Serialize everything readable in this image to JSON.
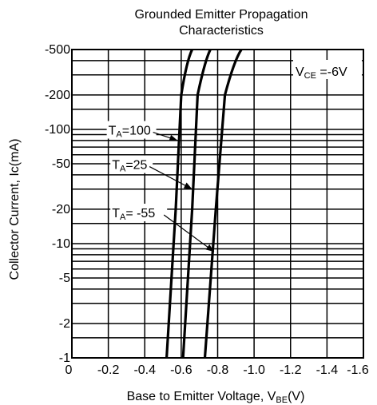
{
  "chart_data": {
    "type": "line",
    "title_line1": "Grounded Emitter Propagation",
    "title_line2": "Characteristics",
    "xlabel": "Base to Emitter Voltage, V",
    "xlabel_sub": "BE",
    "xlabel_tail": "(V)",
    "ylabel": "Collector Current,  Ic(mA)",
    "x_scale": "linear",
    "y_scale": "log",
    "xlim": [
      0,
      -1.6
    ],
    "ylim": [
      -1,
      -500
    ],
    "grid": true,
    "x_ticks": [
      {
        "value": 0,
        "label": "0"
      },
      {
        "value": -0.2,
        "label": "-0.2"
      },
      {
        "value": -0.4,
        "label": "-0.4"
      },
      {
        "value": -0.6,
        "label": "-0.6"
      },
      {
        "value": -0.8,
        "label": "-0.8"
      },
      {
        "value": -1.0,
        "label": "-1.0"
      },
      {
        "value": -1.2,
        "label": "-1.2"
      },
      {
        "value": -1.4,
        "label": "-1.4"
      },
      {
        "value": -1.6,
        "label": "-1.6"
      }
    ],
    "y_ticks": [
      {
        "value": -1,
        "label": "-1"
      },
      {
        "value": -2,
        "label": "-2"
      },
      {
        "value": -5,
        "label": "-5"
      },
      {
        "value": -10,
        "label": "-10"
      },
      {
        "value": -20,
        "label": "-20"
      },
      {
        "value": -50,
        "label": "-50"
      },
      {
        "value": -100,
        "label": "-100"
      },
      {
        "value": -200,
        "label": "-200"
      },
      {
        "value": -500,
        "label": "-500"
      }
    ],
    "y_gridlines": [
      -1.5,
      -2,
      -3,
      -4,
      -5,
      -6,
      -7,
      -8,
      -9,
      -10,
      -15,
      -20,
      -30,
      -40,
      -50,
      -60,
      -70,
      -80,
      -90,
      -100,
      -150,
      -200,
      -300,
      -400
    ],
    "condition": {
      "main": "V",
      "sub": "CE",
      "tail": " =-6V"
    },
    "series": [
      {
        "name": "TA=100",
        "label_main": "T",
        "label_sub": "A",
        "label_tail": "=100",
        "points": [
          [
            -0.52,
            -1
          ],
          [
            -0.57,
            -20
          ],
          [
            -0.6,
            -200
          ],
          [
            -0.63,
            -400
          ],
          [
            -0.66,
            -500
          ]
        ]
      },
      {
        "name": "TA=25",
        "label_main": "T",
        "label_sub": "A",
        "label_tail": "=25",
        "points": [
          [
            -0.61,
            -1
          ],
          [
            -0.66,
            -20
          ],
          [
            -0.69,
            -200
          ],
          [
            -0.73,
            -400
          ],
          [
            -0.76,
            -500
          ]
        ]
      },
      {
        "name": "TA=-55",
        "label_main": "T",
        "label_sub": "A",
        "label_tail": "= -55",
        "points": [
          [
            -0.73,
            -1
          ],
          [
            -0.79,
            -20
          ],
          [
            -0.84,
            -200
          ],
          [
            -0.89,
            -400
          ],
          [
            -0.93,
            -500
          ]
        ]
      }
    ],
    "annotations": [
      {
        "series": 0,
        "label_at": [
          -0.2,
          -90
        ],
        "arrow_to": [
          -0.58,
          -80
        ]
      },
      {
        "series": 1,
        "label_at": [
          -0.22,
          -45
        ],
        "arrow_to": [
          -0.66,
          -30
        ]
      },
      {
        "series": 2,
        "label_at": [
          -0.22,
          -17
        ],
        "arrow_to": [
          -0.78,
          -8.5
        ]
      }
    ]
  }
}
